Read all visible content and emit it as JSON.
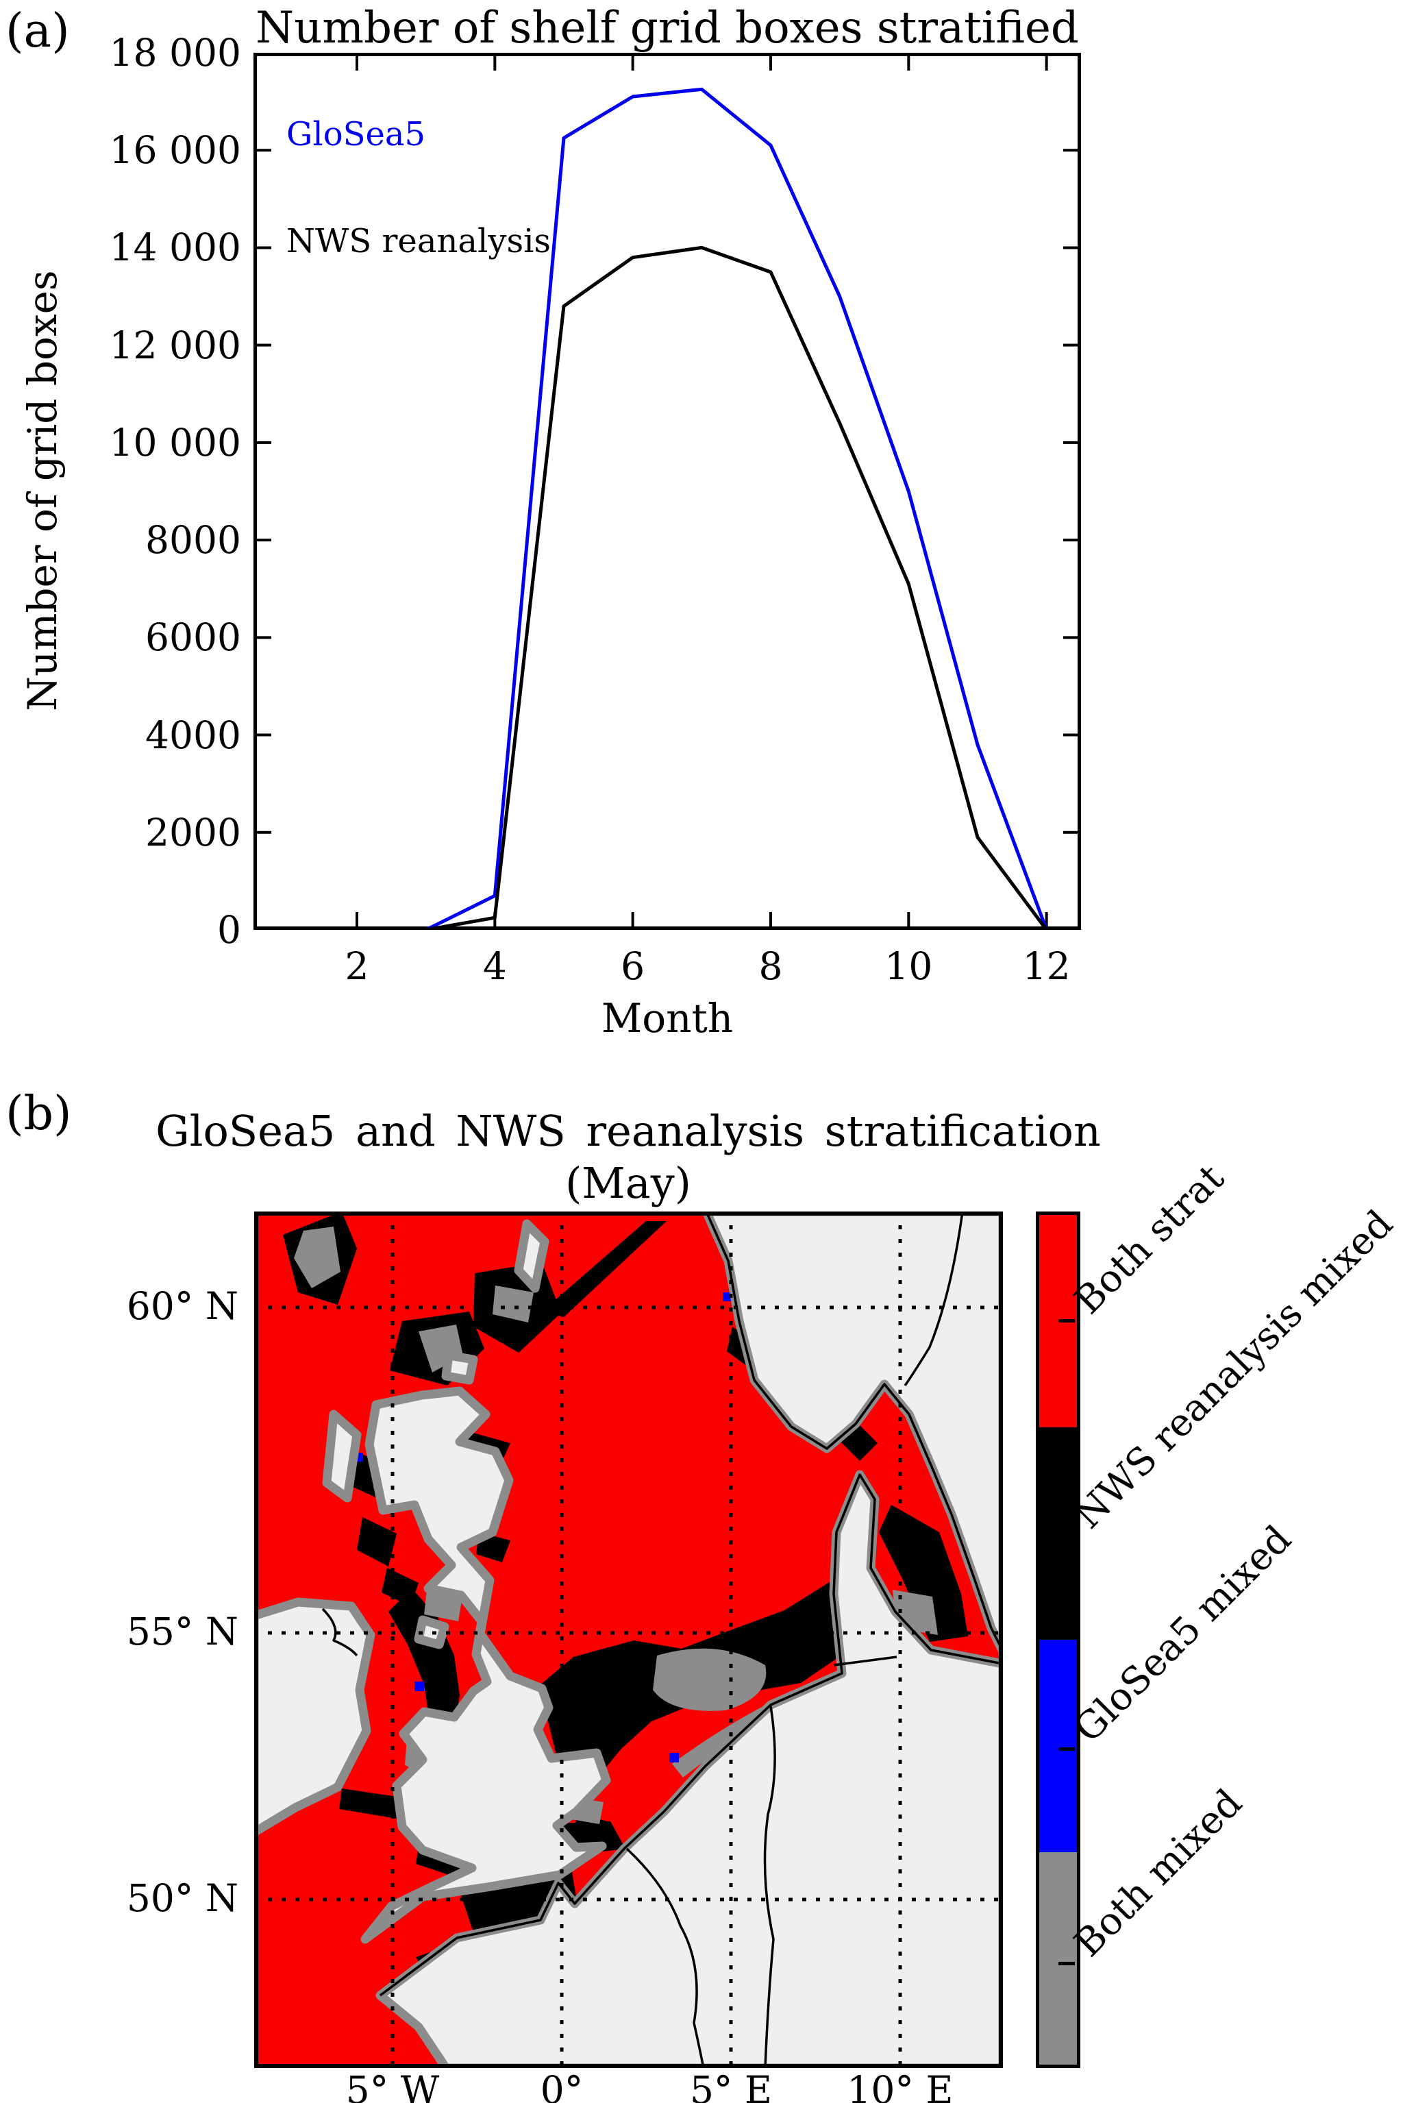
{
  "panel_a": {
    "panel_label": "(a)",
    "title": "Number of shelf grid boxes stratified",
    "xlabel": "Month",
    "ylabel": "Number of grid boxes",
    "x_ticks": [
      "2",
      "4",
      "6",
      "8",
      "10",
      "12"
    ],
    "y_ticks": [
      "0",
      "2000",
      "4000",
      "6000",
      "8000",
      "10 000",
      "12 000",
      "14 000",
      "16 000",
      "18 000"
    ],
    "legend": {
      "glosea5": "GloSea5",
      "nws": "NWS reanalysis"
    },
    "colors": {
      "glosea5": "#0000ee",
      "nws": "#000000",
      "axis": "#000000"
    }
  },
  "chart_data": {
    "type": "line",
    "title": "Number of shelf grid boxes stratified",
    "xlabel": "Month",
    "ylabel": "Number of grid boxes",
    "x": [
      1,
      2,
      3,
      4,
      5,
      6,
      7,
      8,
      9,
      10,
      11,
      12
    ],
    "series": [
      {
        "name": "GloSea5",
        "color": "#0000ee",
        "values": [
          0,
          0,
          0,
          700,
          16250,
          17100,
          17250,
          16100,
          13000,
          9000,
          3800,
          0
        ]
      },
      {
        "name": "NWS reanalysis",
        "color": "#000000",
        "values": [
          0,
          0,
          0,
          250,
          12800,
          13800,
          14000,
          13500,
          10400,
          7100,
          1900,
          0
        ]
      }
    ],
    "xlim": [
      0.5,
      12.5
    ],
    "ylim": [
      0,
      18000
    ],
    "grid": false,
    "legend_position": "inline text, upper left"
  },
  "panel_b": {
    "panel_label": "(b)",
    "title_line1": "GloSea5 and NWS reanalysis stratification",
    "title_line2": "(May)",
    "lat_ticks": [
      "60° N",
      "55° N",
      "50° N"
    ],
    "lon_ticks": [
      "5° W",
      "0°",
      "5° E",
      "10° E"
    ],
    "colorbar": [
      {
        "label": "Both strat",
        "color": "#fb0000"
      },
      {
        "label": "NWS reanalysis mixed",
        "color": "#000000"
      },
      {
        "label": "GloSea5 mixed",
        "color": "#0000ff"
      },
      {
        "label": "Both mixed",
        "color": "#8c8c8c"
      }
    ],
    "map_colors": {
      "both_stratified": "#fb0000",
      "nws_reanalysis_mixed": "#000000",
      "glosea5_mixed": "#0000ff",
      "both_mixed": "#8c8c8c",
      "land": "#efefef",
      "coastline": "#8c8c8c",
      "country_border": "#000000"
    }
  }
}
